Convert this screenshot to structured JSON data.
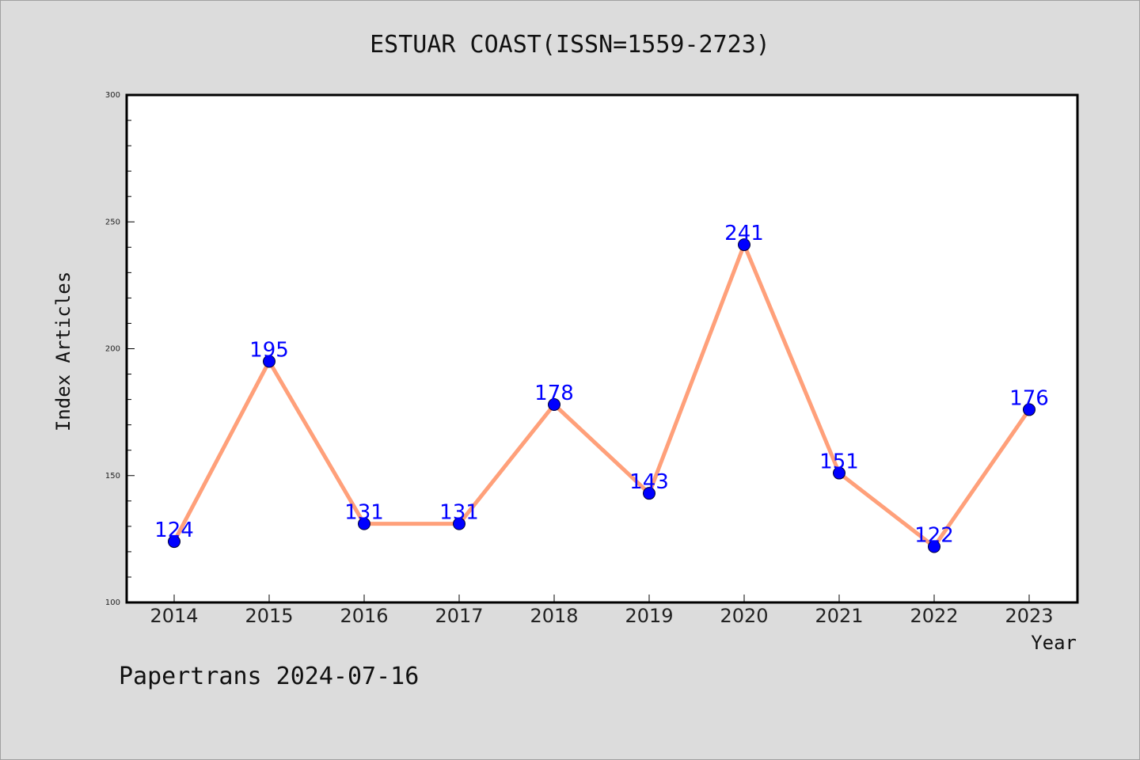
{
  "chart_data": {
    "type": "line",
    "title": "ESTUAR COAST(ISSN=1559-2723)",
    "xlabel": "Year",
    "ylabel": "Index Articles",
    "categories": [
      "2014",
      "2015",
      "2016",
      "2017",
      "2018",
      "2019",
      "2020",
      "2021",
      "2022",
      "2023"
    ],
    "series": [
      {
        "values": [
          124,
          195,
          131,
          131,
          178,
          143,
          241,
          151,
          122,
          176
        ]
      }
    ],
    "ylim": [
      100,
      300
    ],
    "yticks": [
      "100",
      "150",
      "200",
      "250",
      "300"
    ],
    "grid": false,
    "colors": {
      "line": "#ffa07a",
      "marker": "#0000ff",
      "data_label": "#0000ff",
      "background": "#dcdcdc",
      "plot_background": "#ffffff"
    }
  },
  "footer": "Papertrans 2024-07-16"
}
